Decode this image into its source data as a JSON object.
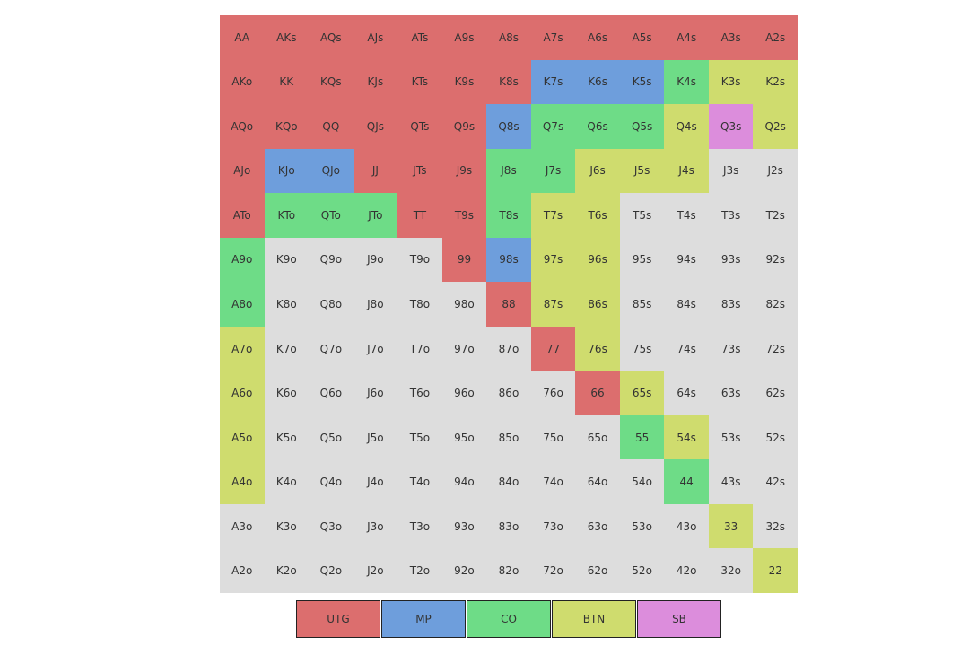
{
  "colors": {
    "UTG": "#dc6e6e",
    "MP": "#6e9edc",
    "CO": "#6edc87",
    "BTN": "#cfdc6e",
    "SB": "#dc8ddc",
    "fold": "#dddddd"
  },
  "legend": [
    {
      "key": "UTG",
      "label": "UTG"
    },
    {
      "key": "MP",
      "label": "MP"
    },
    {
      "key": "CO",
      "label": "CO"
    },
    {
      "key": "BTN",
      "label": "BTN"
    },
    {
      "key": "SB",
      "label": "SB"
    }
  ],
  "grid": {
    "hands": [
      [
        "AA",
        "AKs",
        "AQs",
        "AJs",
        "ATs",
        "A9s",
        "A8s",
        "A7s",
        "A6s",
        "A5s",
        "A4s",
        "A3s",
        "A2s"
      ],
      [
        "AKo",
        "KK",
        "KQs",
        "KJs",
        "KTs",
        "K9s",
        "K8s",
        "K7s",
        "K6s",
        "K5s",
        "K4s",
        "K3s",
        "K2s"
      ],
      [
        "AQo",
        "KQo",
        "QQ",
        "QJs",
        "QTs",
        "Q9s",
        "Q8s",
        "Q7s",
        "Q6s",
        "Q5s",
        "Q4s",
        "Q3s",
        "Q2s"
      ],
      [
        "AJo",
        "KJo",
        "QJo",
        "JJ",
        "JTs",
        "J9s",
        "J8s",
        "J7s",
        "J6s",
        "J5s",
        "J4s",
        "J3s",
        "J2s"
      ],
      [
        "ATo",
        "KTo",
        "QTo",
        "JTo",
        "TT",
        "T9s",
        "T8s",
        "T7s",
        "T6s",
        "T5s",
        "T4s",
        "T3s",
        "T2s"
      ],
      [
        "A9o",
        "K9o",
        "Q9o",
        "J9o",
        "T9o",
        "99",
        "98s",
        "97s",
        "96s",
        "95s",
        "94s",
        "93s",
        "92s"
      ],
      [
        "A8o",
        "K8o",
        "Q8o",
        "J8o",
        "T8o",
        "98o",
        "88",
        "87s",
        "86s",
        "85s",
        "84s",
        "83s",
        "82s"
      ],
      [
        "A7o",
        "K7o",
        "Q7o",
        "J7o",
        "T7o",
        "97o",
        "87o",
        "77",
        "76s",
        "75s",
        "74s",
        "73s",
        "72s"
      ],
      [
        "A6o",
        "K6o",
        "Q6o",
        "J6o",
        "T6o",
        "96o",
        "86o",
        "76o",
        "66",
        "65s",
        "64s",
        "63s",
        "62s"
      ],
      [
        "A5o",
        "K5o",
        "Q5o",
        "J5o",
        "T5o",
        "95o",
        "85o",
        "75o",
        "65o",
        "55",
        "54s",
        "53s",
        "52s"
      ],
      [
        "A4o",
        "K4o",
        "Q4o",
        "J4o",
        "T4o",
        "94o",
        "84o",
        "74o",
        "64o",
        "54o",
        "44",
        "43s",
        "42s"
      ],
      [
        "A3o",
        "K3o",
        "Q3o",
        "J3o",
        "T3o",
        "93o",
        "83o",
        "73o",
        "63o",
        "53o",
        "43o",
        "33",
        "32s"
      ],
      [
        "A2o",
        "K2o",
        "Q2o",
        "J2o",
        "T2o",
        "92o",
        "82o",
        "72o",
        "62o",
        "52o",
        "42o",
        "32o",
        "22"
      ]
    ],
    "positions": [
      [
        "UTG",
        "UTG",
        "UTG",
        "UTG",
        "UTG",
        "UTG",
        "UTG",
        "UTG",
        "UTG",
        "UTG",
        "UTG",
        "UTG",
        "UTG"
      ],
      [
        "UTG",
        "UTG",
        "UTG",
        "UTG",
        "UTG",
        "UTG",
        "UTG",
        "MP",
        "MP",
        "MP",
        "CO",
        "BTN",
        "BTN"
      ],
      [
        "UTG",
        "UTG",
        "UTG",
        "UTG",
        "UTG",
        "UTG",
        "MP",
        "CO",
        "CO",
        "CO",
        "BTN",
        "SB",
        "BTN"
      ],
      [
        "UTG",
        "MP",
        "MP",
        "UTG",
        "UTG",
        "UTG",
        "CO",
        "CO",
        "BTN",
        "BTN",
        "BTN",
        "fold",
        "fold"
      ],
      [
        "UTG",
        "CO",
        "CO",
        "CO",
        "UTG",
        "UTG",
        "CO",
        "BTN",
        "BTN",
        "fold",
        "fold",
        "fold",
        "fold"
      ],
      [
        "CO",
        "fold",
        "fold",
        "fold",
        "fold",
        "UTG",
        "MP",
        "BTN",
        "BTN",
        "fold",
        "fold",
        "fold",
        "fold"
      ],
      [
        "CO",
        "fold",
        "fold",
        "fold",
        "fold",
        "fold",
        "UTG",
        "BTN",
        "BTN",
        "fold",
        "fold",
        "fold",
        "fold"
      ],
      [
        "BTN",
        "fold",
        "fold",
        "fold",
        "fold",
        "fold",
        "fold",
        "UTG",
        "BTN",
        "fold",
        "fold",
        "fold",
        "fold"
      ],
      [
        "BTN",
        "fold",
        "fold",
        "fold",
        "fold",
        "fold",
        "fold",
        "fold",
        "UTG",
        "BTN",
        "fold",
        "fold",
        "fold"
      ],
      [
        "BTN",
        "fold",
        "fold",
        "fold",
        "fold",
        "fold",
        "fold",
        "fold",
        "fold",
        "CO",
        "BTN",
        "fold",
        "fold"
      ],
      [
        "BTN",
        "fold",
        "fold",
        "fold",
        "fold",
        "fold",
        "fold",
        "fold",
        "fold",
        "fold",
        "CO",
        "fold",
        "fold"
      ],
      [
        "fold",
        "fold",
        "fold",
        "fold",
        "fold",
        "fold",
        "fold",
        "fold",
        "fold",
        "fold",
        "fold",
        "BTN",
        "fold"
      ],
      [
        "fold",
        "fold",
        "fold",
        "fold",
        "fold",
        "fold",
        "fold",
        "fold",
        "fold",
        "fold",
        "fold",
        "fold",
        "BTN"
      ]
    ]
  }
}
